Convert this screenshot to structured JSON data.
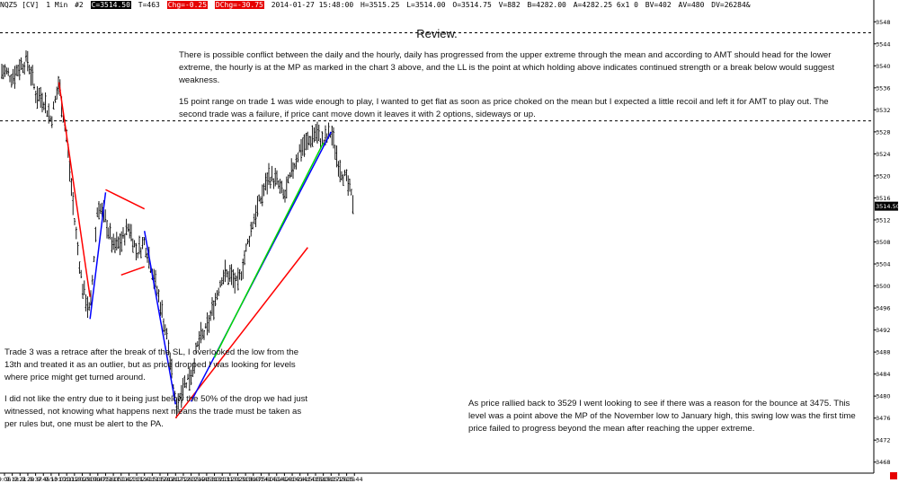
{
  "status_bar": {
    "symbol": "NQZ5 [CV]",
    "interval": "1 Min",
    "tag": "#2",
    "close": "C=3514.50",
    "ticks": "T=463",
    "chg": "Chg=-0.25",
    "dchg": "DChg=-30.75",
    "datetime": "2014-01-27 15:48:00",
    "high": "H=3515.25",
    "low": "L=3514.00",
    "open": "O=3514.75",
    "volume": "V=882",
    "bid": "B=4282.00",
    "ask": "A=4282.25 6x1 0",
    "bid_volume": "BV=402",
    "ask_volume": "AV=480",
    "delta": "DV=26284&"
  },
  "review_title": "Review.",
  "notes": {
    "top_paragraph_1": "There is possible conflict between the daily and the hourly, daily has progressed from the upper extreme through the mean and according to AMT should head for the lower extreme, the hourly is at the MP as marked in the chart 3 above, and the LL is the point at which holding above indicates continued strength or a break below would suggest weakness.",
    "top_paragraph_2": "15 point range on trade 1 was wide enough to play, I wanted to get flat as soon as price choked on the mean but I expected a little recoil and left it for AMT to play out. The second trade was a failure, if price cant move down it leaves it with 2 options, sideways or up.",
    "left_paragraph_1": "Trade 3 was a retrace after the break of the SL, I overlooked the low from the 13th and treated it as an outlier, but as price dropped I was looking for levels where price might get turned around.",
    "left_paragraph_2": "I did not like the entry due to it being just below the 50% of the drop we had just witnessed, not knowing what happens next means the trade must be taken as per rules but, one must be alert to the PA.",
    "right_paragraph_1": "As price rallied back to 3529 I went looking to see if there was a reason for the bounce at 3475. This level was a point above the MP of the November low to January high, this swing low was the first time price failed to progress beyond the mean after reaching the upper extreme."
  },
  "chart_data": {
    "type": "bar",
    "symbol": "NQZ5 [CV]",
    "interval": "1 Min",
    "y_axis_ticks": [
      3548,
      3544,
      3540,
      3536,
      3532,
      3528,
      3524,
      3520,
      3516,
      3512,
      3508,
      3504,
      3500,
      3496,
      3492,
      3488,
      3484,
      3480,
      3476,
      3472,
      3468
    ],
    "ylim": [
      3466,
      3550
    ],
    "current_price_label": "3514.50",
    "current_price": 3514.5,
    "x_tick_labels": [
      "9:05",
      "9:13",
      "9:21",
      "9:29",
      "9:37",
      "9:45",
      "9:53",
      "10:02",
      "10:11",
      "10:20",
      "10:29",
      "10:38",
      "10:47",
      "10:56",
      "11:05",
      "11:14",
      "11:23",
      "11:32",
      "11:41",
      "11:50",
      "11:59",
      "12:08",
      "12:17",
      "12:26",
      "12:35",
      "12:44",
      "12:53",
      "13:02",
      "13:11",
      "13:20",
      "13:29",
      "13:38",
      "13:47",
      "13:56",
      "14:05",
      "14:14",
      "14:23",
      "14:32",
      "14:41",
      "14:50",
      "14:59",
      "15:08",
      "15:17",
      "15:26",
      "15:35",
      "15:44"
    ],
    "price_path_anchors": [
      [
        "9:05",
        3539
      ],
      [
        "9:13",
        3538
      ],
      [
        "9:21",
        3540
      ],
      [
        "9:29",
        3541
      ],
      [
        "9:37",
        3535
      ],
      [
        "9:45",
        3534
      ],
      [
        "9:53",
        3530
      ],
      [
        "10:02",
        3537
      ],
      [
        "10:11",
        3527
      ],
      [
        "10:20",
        3512
      ],
      [
        "10:29",
        3500
      ],
      [
        "10:38",
        3495
      ],
      [
        "10:47",
        3515
      ],
      [
        "10:56",
        3512
      ],
      [
        "11:05",
        3507
      ],
      [
        "11:14",
        3508
      ],
      [
        "11:23",
        3511
      ],
      [
        "11:32",
        3506
      ],
      [
        "11:41",
        3508
      ],
      [
        "11:50",
        3503
      ],
      [
        "11:59",
        3497
      ],
      [
        "12:08",
        3490
      ],
      [
        "12:17",
        3478
      ],
      [
        "12:26",
        3482
      ],
      [
        "12:35",
        3484
      ],
      [
        "12:44",
        3490
      ],
      [
        "12:53",
        3492
      ],
      [
        "13:02",
        3497
      ],
      [
        "13:11",
        3502
      ],
      [
        "13:20",
        3502
      ],
      [
        "13:29",
        3500
      ],
      [
        "13:38",
        3506
      ],
      [
        "13:47",
        3512
      ],
      [
        "13:56",
        3516
      ],
      [
        "14:05",
        3520
      ],
      [
        "14:14",
        3519
      ],
      [
        "14:23",
        3516
      ],
      [
        "14:32",
        3521
      ],
      [
        "14:41",
        3525
      ],
      [
        "14:50",
        3526
      ],
      [
        "14:59",
        3528
      ],
      [
        "15:08",
        3526
      ],
      [
        "15:17",
        3528
      ],
      [
        "15:26",
        3522
      ],
      [
        "15:35",
        3519
      ],
      [
        "15:44",
        3514.5
      ]
    ],
    "reference_levels": [
      {
        "price": 3546,
        "style": "dashed",
        "color": "#000000"
      },
      {
        "price": 3530,
        "style": "dashed",
        "color": "#000000"
      }
    ],
    "drawn_lines": [
      {
        "color": "#ff0000",
        "from": [
          "10:02",
          3537
        ],
        "to": [
          "10:38",
          3498
        ]
      },
      {
        "color": "#0000ff",
        "from": [
          "10:38",
          3494
        ],
        "to": [
          "10:56",
          3517
        ]
      },
      {
        "color": "#ff0000",
        "from": [
          "10:56",
          3517.5
        ],
        "to": [
          "11:41",
          3514
        ]
      },
      {
        "color": "#ff0000",
        "from": [
          "11:14",
          3502
        ],
        "to": [
          "11:41",
          3503.5
        ]
      },
      {
        "color": "#0000ff",
        "from": [
          "11:41",
          3510
        ],
        "to": [
          "12:17",
          3478.5
        ]
      },
      {
        "color": "#ff0000",
        "from": [
          "12:17",
          3476
        ],
        "to": [
          "14:50",
          3507
        ]
      },
      {
        "color": "#0000ff",
        "from": [
          "12:35",
          3479
        ],
        "to": [
          "15:17",
          3528
        ]
      },
      {
        "color": "#00dd00",
        "from": [
          "13:02",
          3487
        ],
        "to": [
          "15:08",
          3526
        ]
      }
    ]
  }
}
